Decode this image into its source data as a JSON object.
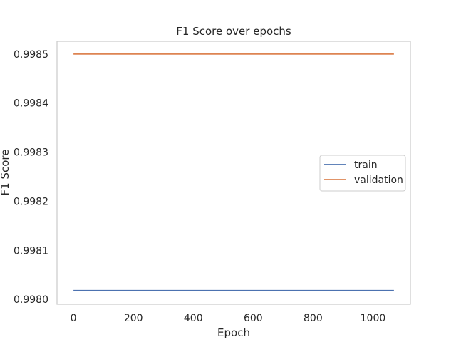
{
  "chart_data": {
    "type": "line",
    "title": "F1 Score over epochs",
    "xlabel": "Epoch",
    "ylabel": "F1 Score",
    "xlim": [
      -55,
      1125
    ],
    "ylim": [
      0.99799,
      0.998526
    ],
    "xticks": [
      0,
      200,
      400,
      600,
      800,
      1000
    ],
    "xtick_labels": [
      "0",
      "200",
      "400",
      "600",
      "800",
      "1000"
    ],
    "yticks": [
      0.998,
      0.9981,
      0.9982,
      0.9983,
      0.9984,
      0.9985
    ],
    "ytick_labels": [
      "0.9980",
      "0.9981",
      "0.9982",
      "0.9983",
      "0.9984",
      "0.9985"
    ],
    "grid": false,
    "legend_position": "center-right",
    "series": [
      {
        "name": "train",
        "color": "#4c72b0",
        "x": [
          0,
          1070
        ],
        "y": [
          0.998018,
          0.998018
        ]
      },
      {
        "name": "validation",
        "color": "#dd8452",
        "x": [
          0,
          1070
        ],
        "y": [
          0.9985,
          0.9985
        ]
      }
    ]
  }
}
